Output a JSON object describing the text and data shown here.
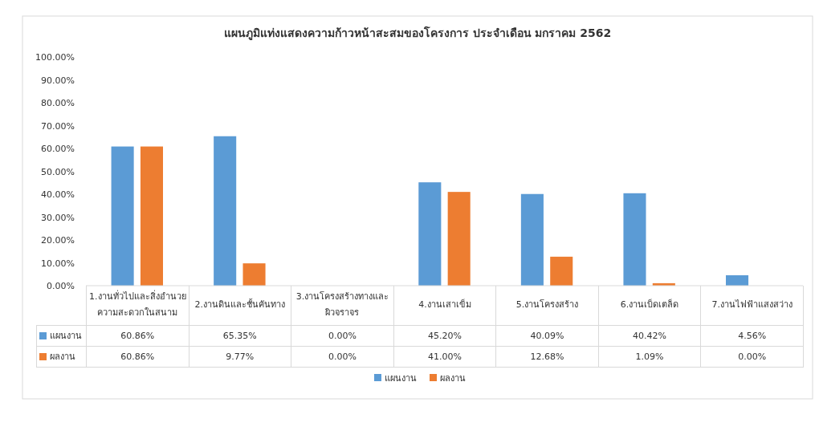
{
  "chart_data": {
    "type": "bar",
    "title": "แผนภูมิแท่งแสดงความก้าวหน้าสะสมของโครงการ ประจำเดือน มกราคม 2562",
    "categories": [
      "1.งานทั่วไปและสิ่งอำนวยความสะดวกในสนาม",
      "2.งานดินและชั้นคันทาง",
      "3.งานโครงสร้างทางและผิวจราจร",
      "4.งานเสาเข็ม",
      "5.งานโครงสร้าง",
      "6.งานเบ็ดเตล็ด",
      "7.งานไฟฟ้าแสงสว่าง"
    ],
    "series": [
      {
        "name": "แผนงาน",
        "color": "#5b9bd5",
        "values": [
          60.86,
          65.35,
          0.0,
          45.2,
          40.09,
          40.42,
          4.56
        ],
        "value_labels": [
          "60.86%",
          "65.35%",
          "0.00%",
          "45.20%",
          "40.09%",
          "40.42%",
          "4.56%"
        ]
      },
      {
        "name": "ผลงาน",
        "color": "#ed7d31",
        "values": [
          60.86,
          9.77,
          0.0,
          41.0,
          12.68,
          1.09,
          0.0
        ],
        "value_labels": [
          "60.86%",
          "9.77%",
          "0.00%",
          "41.00%",
          "12.68%",
          "1.09%",
          "0.00%"
        ]
      }
    ],
    "ylim": [
      0,
      100
    ],
    "yticks": [
      {
        "value": 0,
        "label": "0.00%"
      },
      {
        "value": 10,
        "label": "10.00%"
      },
      {
        "value": 20,
        "label": "20.00%"
      },
      {
        "value": 30,
        "label": "30.00%"
      },
      {
        "value": 40,
        "label": "40.00%"
      },
      {
        "value": 50,
        "label": "50.00%"
      },
      {
        "value": 60,
        "label": "60.00%"
      },
      {
        "value": 70,
        "label": "70.00%"
      },
      {
        "value": 80,
        "label": "80.00%"
      },
      {
        "value": 90,
        "label": "90.00%"
      },
      {
        "value": 100,
        "label": "100.00%"
      }
    ],
    "legend": "bottom"
  }
}
